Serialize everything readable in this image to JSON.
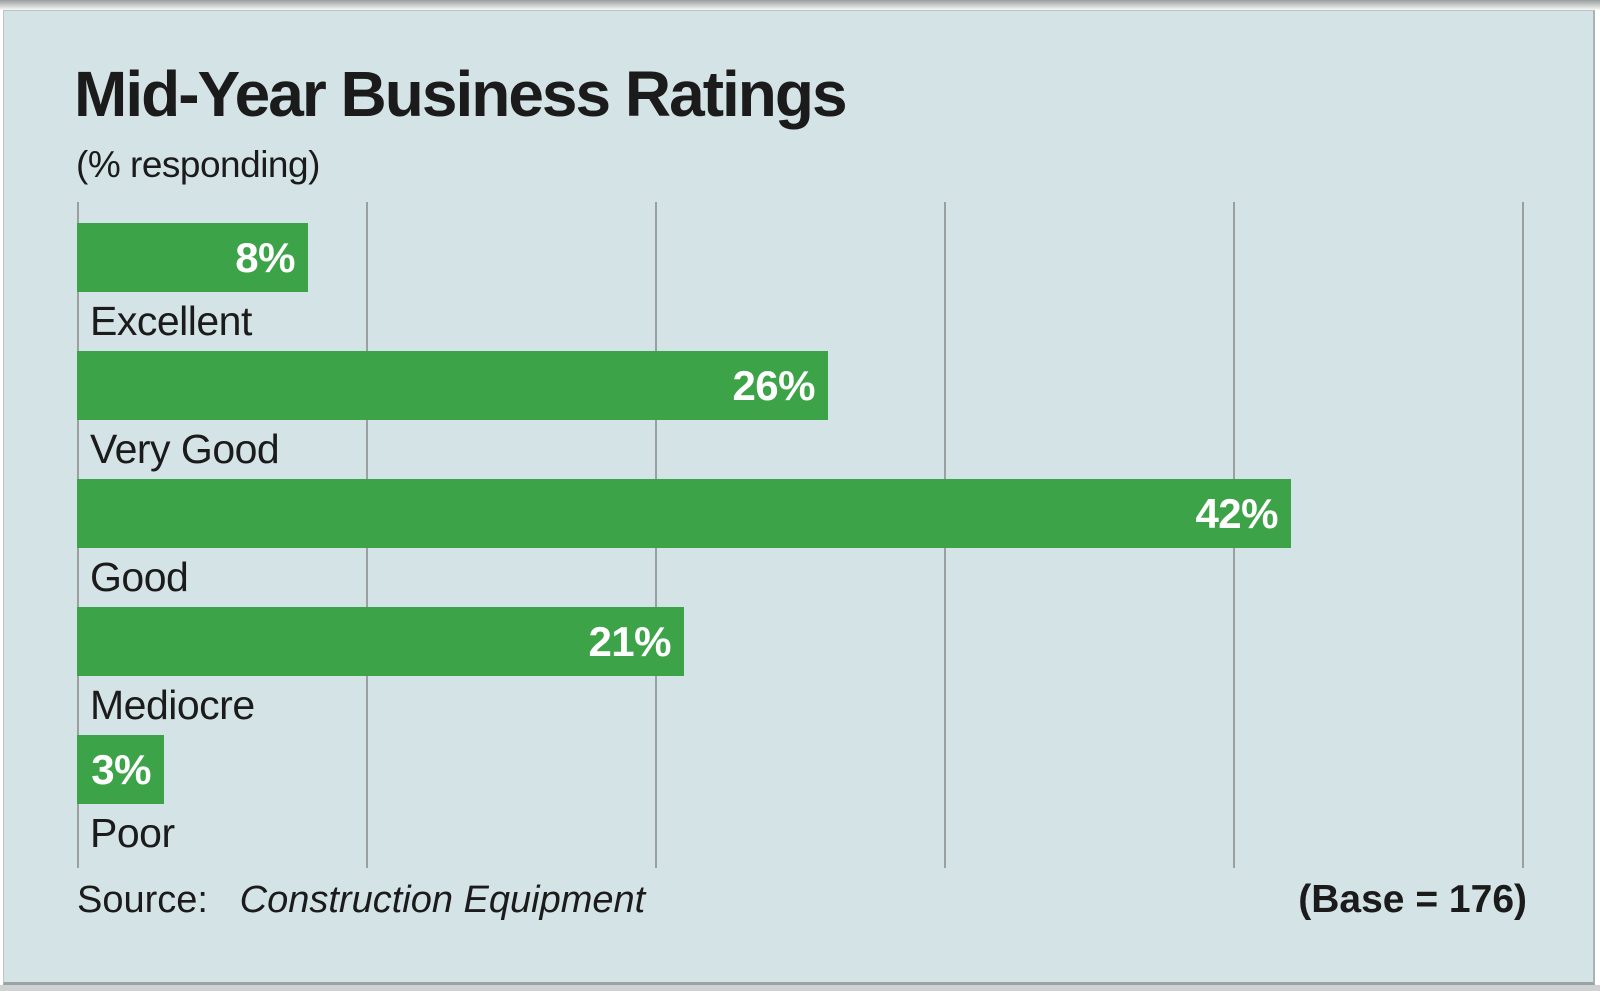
{
  "chart_data": {
    "type": "bar",
    "orientation": "horizontal",
    "title": "Mid-Year Business Ratings",
    "subtitle": "(% responding)",
    "categories": [
      "Excellent",
      "Very Good",
      "Good",
      "Mediocre",
      "Poor"
    ],
    "values": [
      8,
      26,
      42,
      21,
      3
    ],
    "value_labels": [
      "8%",
      "26%",
      "42%",
      "21%",
      "3%"
    ],
    "xlim": [
      0,
      50
    ],
    "gridline_step": 10,
    "grid": true,
    "legend": "none",
    "source_label": "Source:",
    "source_name": "Construction Equipment",
    "base_note": "(Base = 176)"
  },
  "colors": {
    "bar": "#3da348",
    "panel_background": "#d3e3e6",
    "gridline": "#9aa0a0",
    "text": "#1b1b1b",
    "value_text": "#ffffff"
  }
}
